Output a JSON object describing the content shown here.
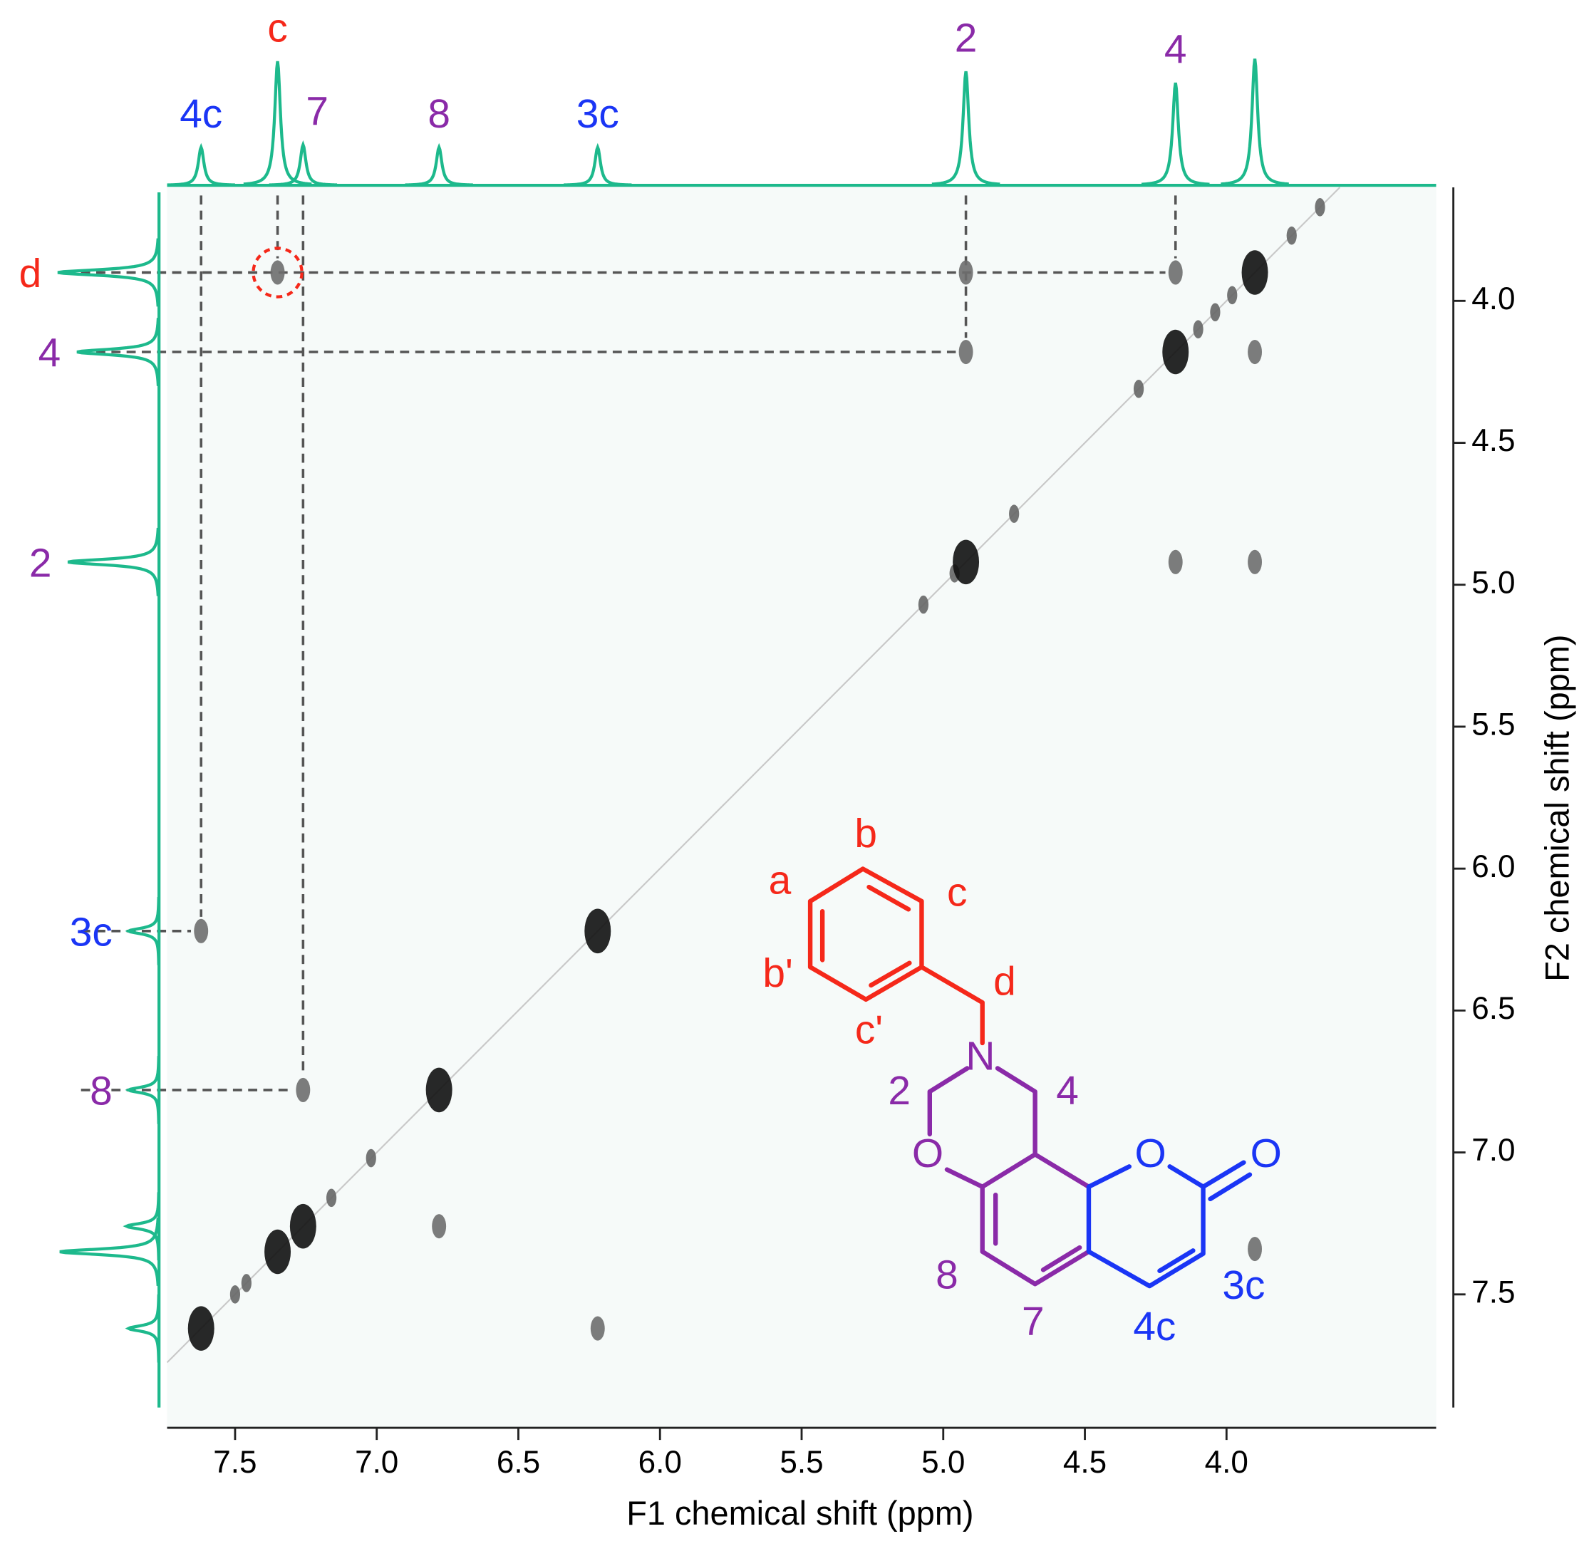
{
  "chart_data": {
    "type": "scatter",
    "xlabel": "F1 chemical shift (ppm)",
    "ylabel": "F2 chemical shift (ppm)",
    "xlim": [
      7.74,
      3.26
    ],
    "ylim": [
      3.6,
      7.97
    ],
    "xticks": [
      7.5,
      {
        "value": 7,
        "label": "7.0"
      },
      6.5,
      {
        "value": 6,
        "label": "6.0"
      },
      5.5,
      {
        "value": 5,
        "label": "5.0"
      },
      4.5,
      {
        "value": 4,
        "label": "4.0"
      }
    ],
    "yticks": [
      {
        "value": 4,
        "label": "4.0"
      },
      4.5,
      {
        "value": 5,
        "label": "5.0"
      },
      5.5,
      {
        "value": 6,
        "label": "6.0"
      },
      6.5,
      {
        "value": 7,
        "label": "7.0"
      },
      7.5
    ],
    "projection": {
      "color": "#1db98c",
      "shifts": [
        7.62,
        7.35,
        7.26,
        6.78,
        6.22,
        4.92,
        4.18,
        3.9
      ],
      "intensities": [
        30,
        98,
        32,
        30,
        30,
        90,
        81,
        100
      ],
      "top_labels": [
        "4c",
        "c",
        "7",
        "8",
        "3c",
        "2",
        "4",
        null
      ],
      "top_label_colors": [
        "#1a35f5",
        "#f5281a",
        "#8a2aa8",
        "#8a2aa8",
        "#1a35f5",
        "#8a2aa8",
        "#8a2aa8",
        null
      ],
      "left_labels": [
        null,
        null,
        null,
        "8",
        "3c",
        "2",
        "4",
        "d"
      ],
      "left_label_colors": [
        null,
        null,
        null,
        "#8a2aa8",
        "#1a35f5",
        "#8a2aa8",
        "#8a2aa8",
        "#f5281a"
      ]
    },
    "diagonal_strong": {
      "color": "#111111",
      "x": [
        7.62,
        7.35,
        7.26,
        6.78,
        6.22,
        4.92,
        4.18,
        3.9
      ],
      "y": [
        7.62,
        7.35,
        7.26,
        6.78,
        6.22,
        4.92,
        4.18,
        3.9
      ]
    },
    "diagonal_weak": {
      "color": "#666666",
      "x": [
        7.5,
        7.46,
        7.16,
        7.02,
        5.07,
        4.96,
        4.75,
        4.31,
        4.1,
        4.04,
        3.98,
        3.77,
        3.67
      ],
      "y": [
        7.5,
        7.46,
        7.16,
        7.02,
        5.07,
        4.96,
        4.75,
        4.31,
        4.1,
        4.04,
        3.98,
        3.77,
        3.67
      ]
    },
    "cross": {
      "color": "#6e6e6e",
      "x": [
        7.35,
        4.92,
        4.18,
        4.92,
        3.9,
        4.18,
        3.9,
        7.62,
        7.26,
        6.78,
        6.22,
        3.9
      ],
      "y": [
        3.9,
        3.9,
        3.9,
        4.18,
        4.18,
        4.92,
        4.92,
        6.22,
        6.78,
        7.26,
        7.62,
        7.34
      ]
    },
    "guides": [
      0,
      2,
      3,
      7,
      8
    ],
    "highlight": 0
  },
  "structure": {
    "labels": [
      "a",
      "b",
      "c",
      "b'",
      "c'",
      "d",
      "N",
      "2",
      "4",
      "O",
      "O",
      "O",
      "8",
      "7",
      "3c",
      "4c"
    ]
  }
}
